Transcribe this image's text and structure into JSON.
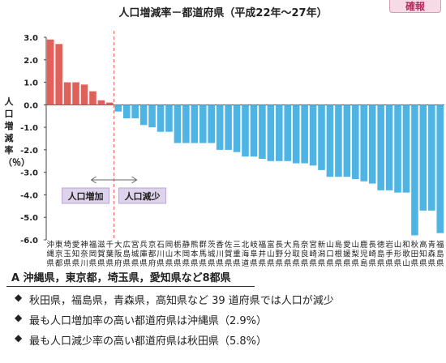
{
  "badge": "確報",
  "chart_data": {
    "type": "bar",
    "title": "人口増減率－都道府県（平成22年～27年）",
    "ylabel": "人口増減率（％）",
    "ylim": [
      -6.0,
      3.0
    ],
    "yticks": [
      "3.0",
      "2.0",
      "1.0",
      "0.0",
      "-1.0",
      "-2.0",
      "-3.0",
      "-4.0",
      "-5.0",
      "-6.0"
    ],
    "grid": false,
    "categories": [
      "沖縄県",
      "東京都",
      "埼玉県",
      "愛知県",
      "神奈川県",
      "福岡県",
      "滋賀県",
      "千葉県",
      "大阪府",
      "広島県",
      "宮城県",
      "兵庫県",
      "京都府",
      "石川県",
      "岡山県",
      "栃木県",
      "静岡県",
      "熊本県",
      "群馬県",
      "茨城県",
      "香川県",
      "佐賀県",
      "三重県",
      "北海道",
      "岐阜県",
      "福井県",
      "富山県",
      "長野県",
      "大分県",
      "鳥取県",
      "奈良県",
      "宮崎県",
      "新潟県",
      "山口県",
      "島根県",
      "愛媛県",
      "山梨県",
      "鹿児島県",
      "長崎県",
      "徳島県",
      "岩手県",
      "山形県",
      "和歌山県",
      "秋田県",
      "高知県",
      "青森県",
      "福島県"
    ],
    "values": [
      2.9,
      2.7,
      1.0,
      1.0,
      0.9,
      0.6,
      0.2,
      0.1,
      -0.3,
      -0.6,
      -0.6,
      -0.9,
      -1.0,
      -1.2,
      -1.2,
      -1.7,
      -1.7,
      -1.7,
      -1.7,
      -1.7,
      -2.0,
      -2.0,
      -2.1,
      -2.3,
      -2.3,
      -2.4,
      -2.5,
      -2.5,
      -2.5,
      -2.6,
      -2.6,
      -2.7,
      -2.9,
      -3.2,
      -3.2,
      -3.2,
      -3.3,
      -3.4,
      -3.5,
      -3.8,
      -3.8,
      -3.9,
      -3.9,
      -5.8,
      -4.7,
      -4.7,
      -5.7
    ],
    "colors": {
      "increase": "#e0605a",
      "decrease": "#4db4e4"
    },
    "annotations": {
      "increase": "人口増加",
      "decrease": "人口減少"
    }
  },
  "summary": {
    "heading": "A  沖縄県，東京都，埼玉県，愛知県など8都県",
    "points": [
      "秋田県，福島県，青森県，高知県など 39 道府県では人口が減少",
      "最も人口増加率の高い都道府県は沖縄県（2.9%）",
      "最も人口減少率の高い都道府県は秋田県（5.8%）"
    ],
    "bullet": "◆"
  }
}
